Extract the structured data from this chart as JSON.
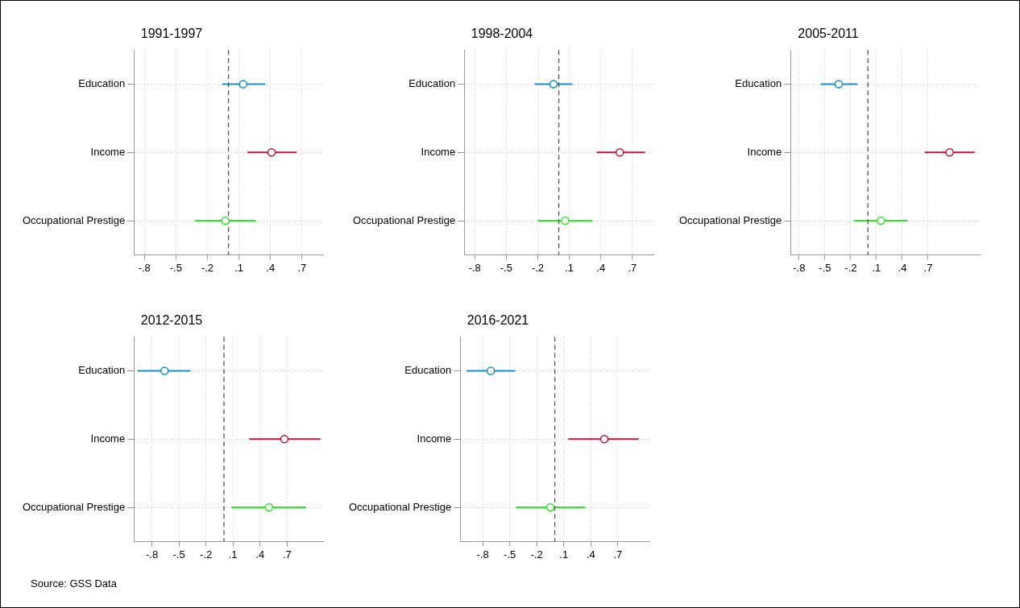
{
  "chart_data": [
    {
      "type": "scatter",
      "orientation": "horizontal",
      "title": "1991-1997",
      "categories": [
        "Education",
        "Income",
        "Occupational Prestige"
      ],
      "values": [
        0.14,
        0.41,
        -0.03
      ],
      "errors": [
        [
          -0.06,
          0.35
        ],
        [
          0.18,
          0.65
        ],
        [
          -0.32,
          0.26
        ]
      ],
      "colors": [
        "#1a90c0",
        "#c8103c",
        "#22ee22"
      ],
      "marker": "circle",
      "xlim": [
        -0.9,
        0.9
      ],
      "xticks": [
        {
          "value": -0.8,
          "label": "-.8"
        },
        {
          "value": -0.5,
          "label": "-.5"
        },
        {
          "value": -0.2,
          "label": "-.2"
        },
        {
          "value": 0.1,
          "label": ".1"
        },
        {
          "value": 0.4,
          "label": ".4"
        },
        {
          "value": 0.7,
          "label": ".7"
        }
      ],
      "grid": true,
      "ref_lines": [
        {
          "axis": "x",
          "value": 0,
          "line_style": "dashed",
          "color": "#555555"
        }
      ]
    },
    {
      "type": "scatter",
      "orientation": "horizontal",
      "title": "1998-2004",
      "categories": [
        "Education",
        "Income",
        "Occupational Prestige"
      ],
      "values": [
        -0.05,
        0.58,
        0.06
      ],
      "errors": [
        [
          -0.23,
          0.13
        ],
        [
          0.36,
          0.82
        ],
        [
          -0.2,
          0.32
        ]
      ],
      "colors": [
        "#1a90c0",
        "#c8103c",
        "#22ee22"
      ],
      "marker": "circle",
      "xlim": [
        -0.9,
        0.9
      ],
      "xticks": [
        {
          "value": -0.8,
          "label": "-.8"
        },
        {
          "value": -0.5,
          "label": "-.5"
        },
        {
          "value": -0.2,
          "label": "-.2"
        },
        {
          "value": 0.1,
          "label": ".1"
        },
        {
          "value": 0.4,
          "label": ".4"
        },
        {
          "value": 0.7,
          "label": ".7"
        }
      ],
      "grid": true,
      "ref_lines": [
        {
          "axis": "x",
          "value": 0,
          "line_style": "dashed",
          "color": "#555555"
        }
      ]
    },
    {
      "type": "scatter",
      "orientation": "horizontal",
      "title": "2005-2011",
      "categories": [
        "Education",
        "Income",
        "Occupational Prestige"
      ],
      "values": [
        -0.34,
        0.95,
        0.15
      ],
      "errors": [
        [
          -0.55,
          -0.12
        ],
        [
          0.66,
          1.24
        ],
        [
          -0.16,
          0.46
        ]
      ],
      "colors": [
        "#1a90c0",
        "#c8103c",
        "#22ee22"
      ],
      "marker": "circle",
      "xlim": [
        -0.9,
        1.3
      ],
      "xticks": [
        {
          "value": -0.8,
          "label": "-.8"
        },
        {
          "value": -0.5,
          "label": "-.5"
        },
        {
          "value": -0.2,
          "label": "-.2"
        },
        {
          "value": 0.1,
          "label": ".1"
        },
        {
          "value": 0.4,
          "label": ".4"
        },
        {
          "value": 0.7,
          "label": ".7"
        }
      ],
      "grid": true,
      "ref_lines": [
        {
          "axis": "x",
          "value": 0,
          "line_style": "dashed",
          "color": "#555555"
        }
      ]
    },
    {
      "type": "scatter",
      "orientation": "horizontal",
      "title": "2012-2015",
      "categories": [
        "Education",
        "Income",
        "Occupational Prestige"
      ],
      "values": [
        -0.66,
        0.67,
        0.5
      ],
      "errors": [
        [
          -0.96,
          -0.37
        ],
        [
          0.28,
          1.07
        ],
        [
          0.08,
          0.91
        ]
      ],
      "colors": [
        "#1a90c0",
        "#c8103c",
        "#22ee22"
      ],
      "marker": "circle",
      "xlim": [
        -1,
        1.1
      ],
      "xticks": [
        {
          "value": -0.8,
          "label": "-.8"
        },
        {
          "value": -0.5,
          "label": "-.5"
        },
        {
          "value": -0.2,
          "label": "-.2"
        },
        {
          "value": 0.1,
          "label": ".1"
        },
        {
          "value": 0.4,
          "label": ".4"
        },
        {
          "value": 0.7,
          "label": ".7"
        }
      ],
      "grid": true,
      "ref_lines": [
        {
          "axis": "x",
          "value": 0,
          "line_style": "dashed",
          "color": "#555555"
        }
      ]
    },
    {
      "type": "scatter",
      "orientation": "horizontal",
      "title": "2016-2021",
      "categories": [
        "Education",
        "Income",
        "Occupational Prestige"
      ],
      "values": [
        -0.71,
        0.55,
        -0.05
      ],
      "errors": [
        [
          -0.98,
          -0.44
        ],
        [
          0.15,
          0.93
        ],
        [
          -0.43,
          0.34
        ]
      ],
      "colors": [
        "#1a90c0",
        "#c8103c",
        "#22ee22"
      ],
      "marker": "circle",
      "xlim": [
        -1.05,
        1.05
      ],
      "xticks": [
        {
          "value": -0.8,
          "label": "-.8"
        },
        {
          "value": -0.5,
          "label": "-.5"
        },
        {
          "value": -0.2,
          "label": "-.2"
        },
        {
          "value": 0.1,
          "label": ".1"
        },
        {
          "value": 0.4,
          "label": ".4"
        },
        {
          "value": 0.7,
          "label": ".7"
        }
      ],
      "grid": true,
      "ref_lines": [
        {
          "axis": "x",
          "value": 0,
          "line_style": "dashed",
          "color": "#555555"
        }
      ],
      "annotations": [
        "Source: GSS Data"
      ]
    }
  ]
}
